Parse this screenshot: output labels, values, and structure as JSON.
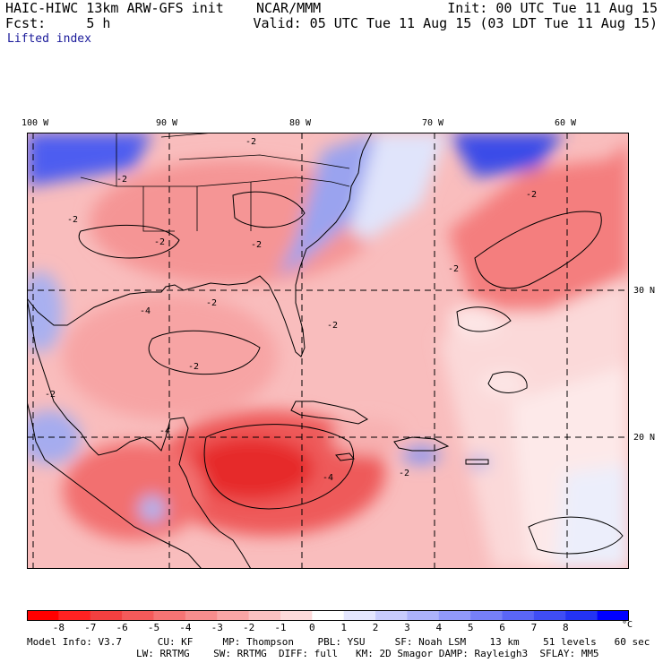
{
  "header": {
    "title_left": "HAIC-HIWC 13km ARW-GFS init",
    "org": "NCAR/MMM",
    "forecast_label": "Fcst:",
    "forecast_hours": "5 h",
    "init_text": "Init: 00 UTC Tue 11 Aug 15",
    "valid_text": "Valid: 05 UTC Tue 11 Aug 15 (03 LDT Tue 11 Aug 15)",
    "field_name": "Lifted index"
  },
  "map": {
    "lon_labels": [
      "100 W",
      "90 W",
      "80 W",
      "70 W",
      "60 W"
    ],
    "lat_labels": [
      "30 N",
      "20 N"
    ],
    "contour_label": "-2",
    "contour_label_deep": "-4",
    "colors": {
      "deep_red": "#e51f20",
      "red": "#f56e6e",
      "pink": "#f7a8a8",
      "light_pink": "#fbd6d6",
      "white": "#fdf5f5",
      "light_blue": "#dfe3fb",
      "blue": "#8f9bef",
      "deep_blue": "#2b3fe6"
    }
  },
  "colorbar": {
    "unit": "°C",
    "ticks": [
      "-8",
      "-7",
      "-6",
      "-5",
      "-4",
      "-3",
      "-2",
      "-1",
      "0",
      "1",
      "2",
      "3",
      "4",
      "5",
      "6",
      "7",
      "8"
    ],
    "colors": [
      "#ff0000",
      "#ff2222",
      "#f34040",
      "#f55a5a",
      "#f67474",
      "#f78d8d",
      "#f9a6a6",
      "#fbc0c0",
      "#fddada",
      "#ffffff",
      "#e4e6fe",
      "#c8ccfd",
      "#adb3fb",
      "#9199fa",
      "#7680f8",
      "#5a66f7",
      "#3f4df5",
      "#2333f4",
      "#0000ff"
    ]
  },
  "model_info": {
    "line1": "Model Info: V3.7      CU: KF     MP: Thompson    PBL: YSU     SF: Noah LSM    13 km    51 levels   60 sec",
    "line2": "LW: RRTMG    SW: RRTMG  DIFF: full   KM: 2D Smagor DAMP: Rayleigh3  SFLAY: MM5"
  }
}
